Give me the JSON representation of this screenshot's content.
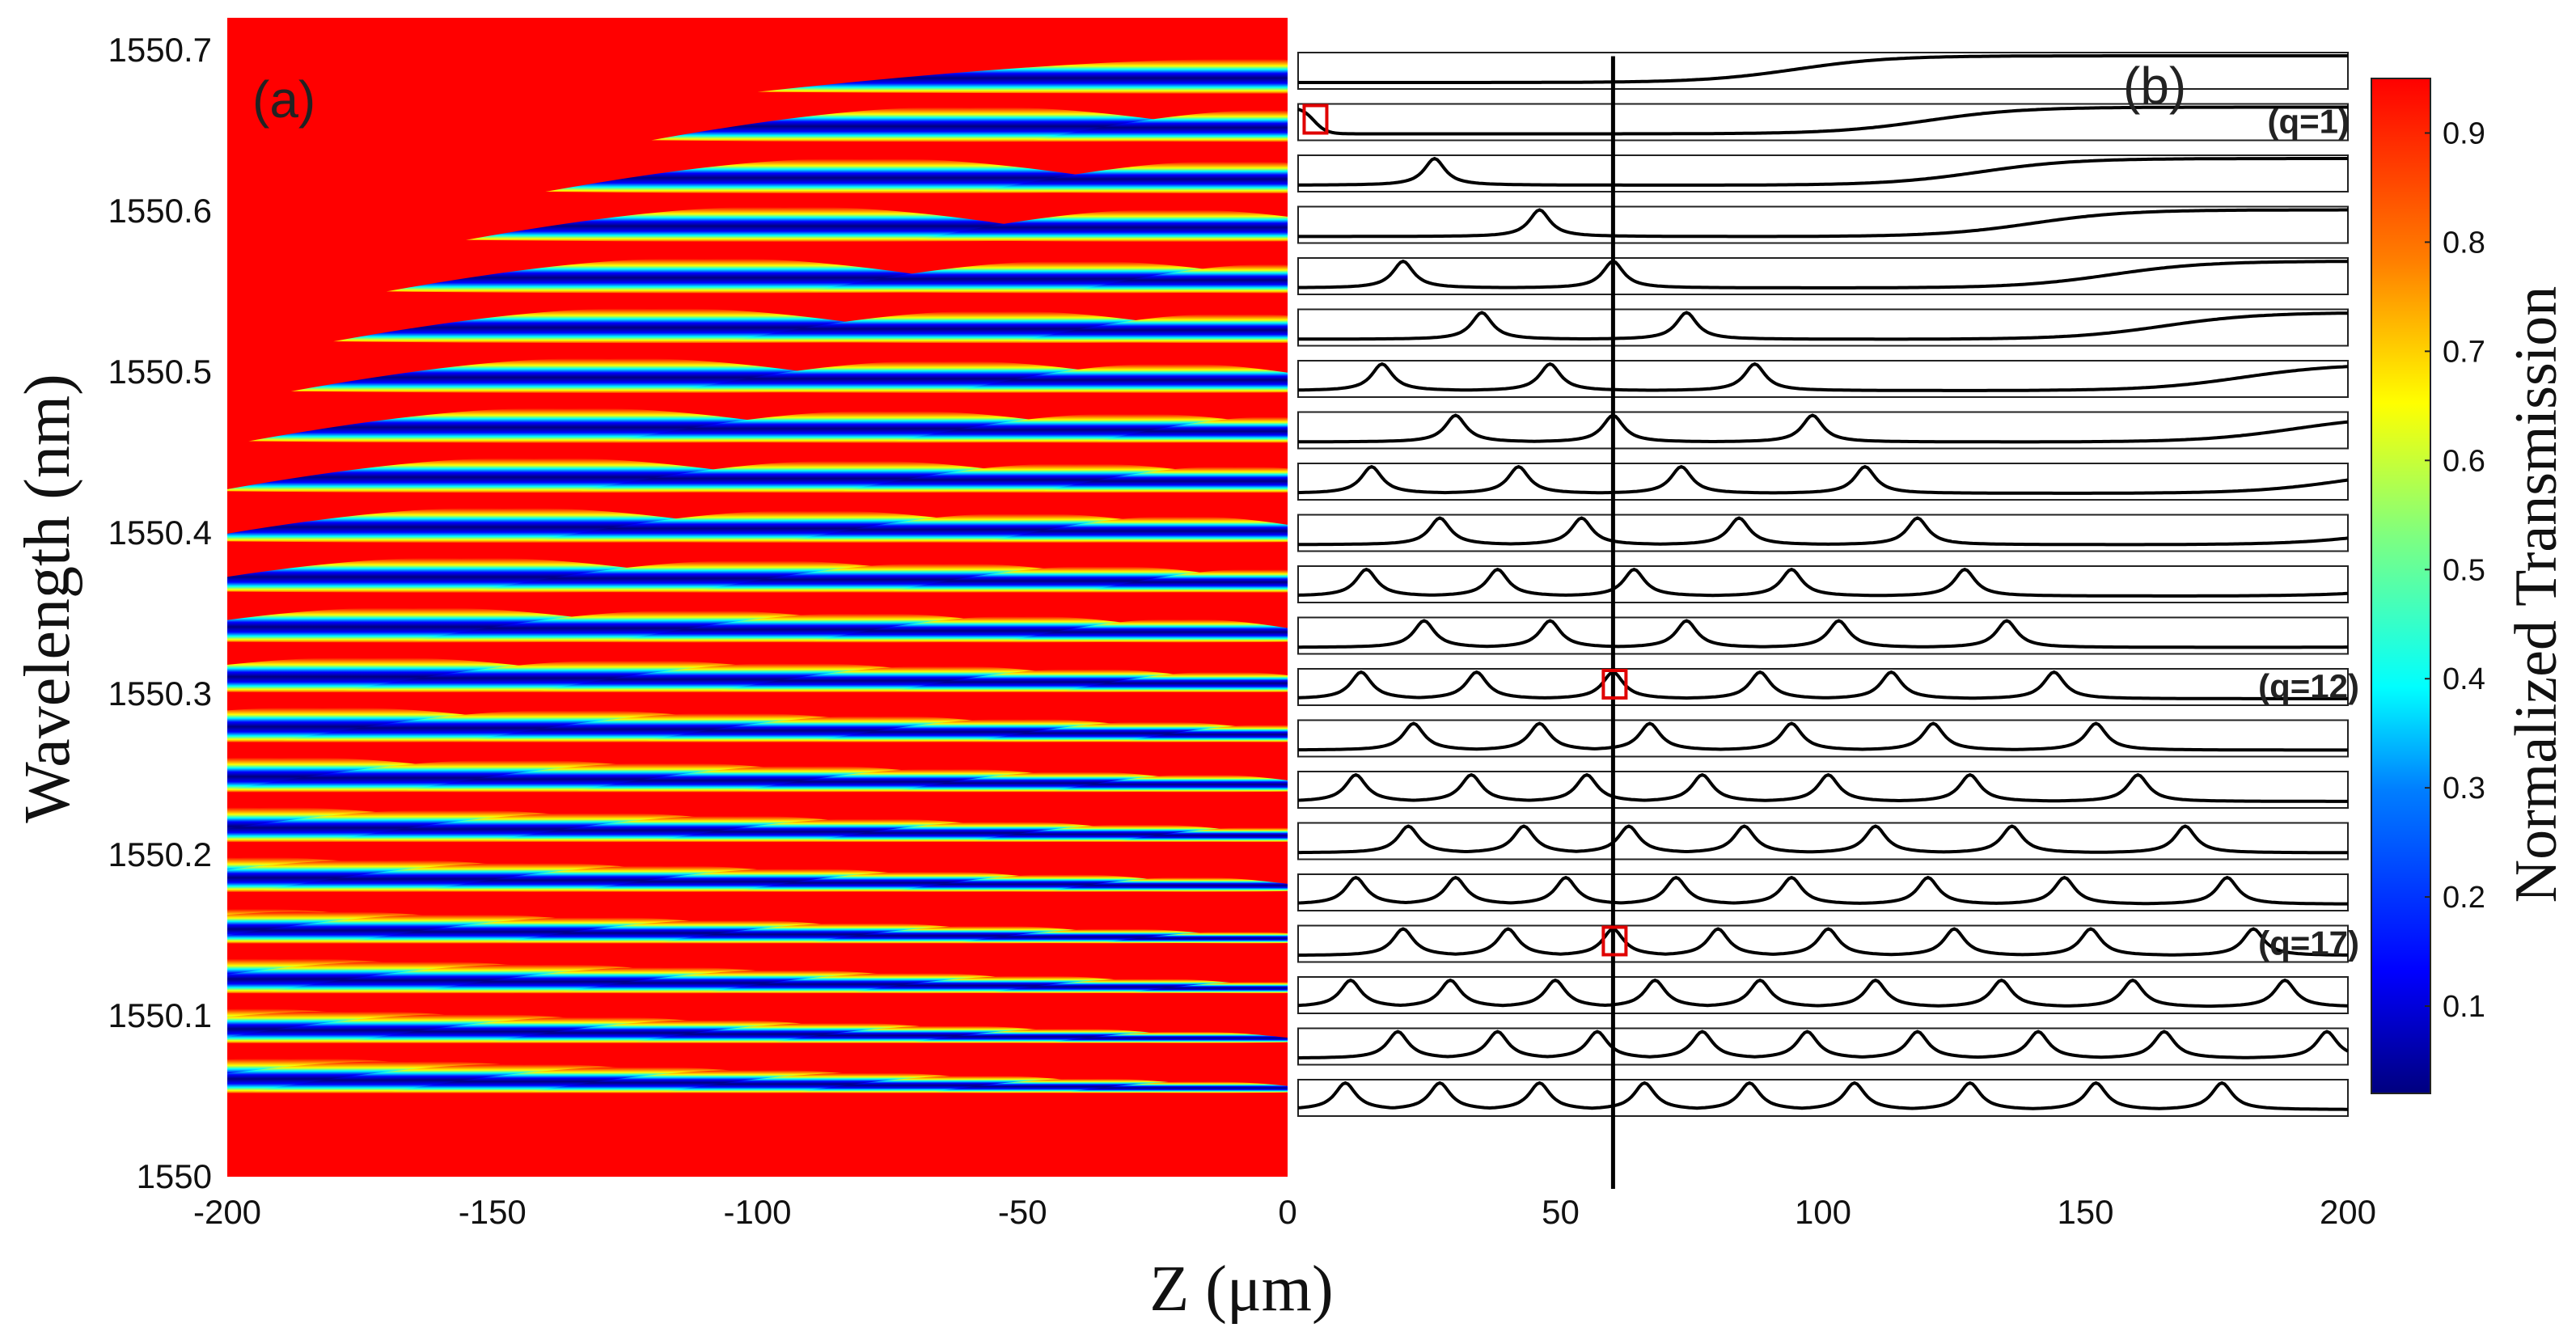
{
  "figure": {
    "panel_a_label": "(a)",
    "panel_b_label": "(b)",
    "x_axis_title": "Z (μm)",
    "y_axis_title": "Wavelength (nm)",
    "colorbar_title": "Normalized Transmission",
    "colormap": [
      "#00007f",
      "#0000ff",
      "#007fff",
      "#00ffff",
      "#7fff7f",
      "#ffff00",
      "#ff7f00",
      "#ff0000"
    ],
    "background_color": "#ff0000",
    "marker_color": "#e00000"
  },
  "chart_data": [
    {
      "type": "heatmap",
      "panel": "(a)",
      "title": "",
      "xlabel": "Z (μm)",
      "ylabel": "Wavelength (nm)",
      "xlim": [
        -200,
        0
      ],
      "ylim": [
        1550,
        1550.72
      ],
      "x_ticks": [
        "-200",
        "-150",
        "-100",
        "-50",
        "0"
      ],
      "y_ticks": [
        "1550",
        "1550.1",
        "1550.2",
        "1550.3",
        "1550.4",
        "1550.5",
        "1550.6",
        "1550.7"
      ],
      "grid": false,
      "colorbar": {
        "label": "Normalized Transmission",
        "range": [
          0.02,
          0.95
        ],
        "ticks": [
          "0.1",
          "0.2",
          "0.3",
          "0.4",
          "0.5",
          "0.6",
          "0.7",
          "0.8",
          "0.9"
        ]
      },
      "band_count": 21,
      "band_wavelengths_nm": [
        1550.683,
        1550.653,
        1550.621,
        1550.591,
        1550.559,
        1550.528,
        1550.497,
        1550.466,
        1550.435,
        1550.404,
        1550.373,
        1550.342,
        1550.311,
        1550.28,
        1550.249,
        1550.218,
        1550.187,
        1550.155,
        1550.124,
        1550.093,
        1550.062
      ],
      "band_lobe_centers_um": [
        [
          0
        ],
        [
          -60,
          0
        ],
        [
          -80,
          -10
        ],
        [
          -95,
          -22
        ],
        [
          -110,
          -40,
          0
        ],
        [
          -120,
          -55,
          -10
        ],
        [
          -128,
          -65,
          -22
        ],
        [
          -136,
          -75,
          -30,
          0
        ],
        [
          -142,
          -82,
          -40,
          -10
        ],
        [
          -148,
          -90,
          -50,
          -20
        ],
        [
          -156,
          -100,
          -65,
          -35,
          -5
        ],
        [
          -165,
          -112,
          -80,
          -50,
          -20
        ],
        [
          -173,
          -124,
          -93,
          -65,
          -38,
          -12
        ],
        [
          -182,
          -135,
          -105,
          -77,
          -50,
          -25,
          -2
        ],
        [
          -190,
          -146,
          -117,
          -90,
          -64,
          -40,
          -16
        ],
        [
          -194,
          -158,
          -130,
          -104,
          -78,
          -53,
          -28,
          -5
        ],
        [
          -198,
          -170,
          -143,
          -117,
          -92,
          -67,
          -42,
          -18
        ],
        [
          -200,
          -182,
          -156,
          -130,
          -105,
          -80,
          -56,
          -32,
          -9
        ],
        [
          -190,
          -165,
          -141,
          -117,
          -94,
          -71,
          -48,
          -26,
          -4
        ],
        [
          -200,
          -177,
          -154,
          -130,
          -108,
          -85,
          -63,
          -41,
          -19
        ],
        [
          -188,
          -166,
          -144,
          -122,
          -100,
          -79,
          -58,
          -37,
          -16
        ]
      ]
    },
    {
      "type": "line",
      "panel": "(b)",
      "title": "",
      "xlabel": "Z (μm)",
      "xlim": [
        0,
        200
      ],
      "x_ticks": [
        "0",
        "50",
        "100",
        "150",
        "200"
      ],
      "grid": false,
      "row_count": 21,
      "vertical_marker_z_um": 60,
      "annotations": [
        {
          "text": "(q=1)",
          "row": 2,
          "marker_z_um": 3
        },
        {
          "text": "(q=12)",
          "row": 13,
          "marker_z_um": 60
        },
        {
          "text": "(q=17)",
          "row": 18,
          "marker_z_um": 60
        }
      ],
      "rows": [
        {
          "row": 1,
          "peaks_um": [],
          "step_um": 95
        },
        {
          "row": 2,
          "peaks_um": [],
          "step_um": 120,
          "start_high": true
        },
        {
          "row": 3,
          "peaks_um": [
            26
          ],
          "step_um": 130
        },
        {
          "row": 4,
          "peaks_um": [
            46
          ],
          "step_um": 140
        },
        {
          "row": 5,
          "peaks_um": [
            20,
            60
          ],
          "step_um": 155
        },
        {
          "row": 6,
          "peaks_um": [
            35,
            74
          ],
          "step_um": 165
        },
        {
          "row": 7,
          "peaks_um": [
            16,
            48,
            87
          ],
          "step_um": 180
        },
        {
          "row": 8,
          "peaks_um": [
            30,
            60,
            98
          ],
          "step_um": 190
        },
        {
          "row": 9,
          "peaks_um": [
            14,
            42,
            73,
            108
          ],
          "step_um": 200
        },
        {
          "row": 10,
          "peaks_um": [
            27,
            54,
            84,
            118
          ],
          "step_um": 210
        },
        {
          "row": 11,
          "peaks_um": [
            13,
            38,
            64,
            94,
            127
          ],
          "step_um": 220
        },
        {
          "row": 12,
          "peaks_um": [
            24,
            48,
            74,
            103,
            135
          ],
          "step_um": 240
        },
        {
          "row": 13,
          "peaks_um": [
            12,
            34,
            60,
            88,
            113,
            144
          ]
        },
        {
          "row": 14,
          "peaks_um": [
            22,
            46,
            67,
            94,
            121,
            152
          ]
        },
        {
          "row": 15,
          "peaks_um": [
            11,
            33,
            55,
            77,
            101,
            128,
            160
          ]
        },
        {
          "row": 16,
          "peaks_um": [
            21,
            43,
            63,
            85,
            110,
            136,
            169
          ]
        },
        {
          "row": 17,
          "peaks_um": [
            11,
            30,
            51,
            72,
            94,
            120,
            146,
            177
          ]
        },
        {
          "row": 18,
          "peaks_um": [
            20,
            40,
            60,
            80,
            101,
            125,
            151,
            182
          ]
        },
        {
          "row": 19,
          "peaks_um": [
            10,
            29,
            49,
            68,
            88,
            110,
            134,
            159,
            188
          ]
        },
        {
          "row": 20,
          "peaks_um": [
            19,
            38,
            57,
            77,
            97,
            118,
            141,
            165,
            196
          ]
        },
        {
          "row": 21,
          "peaks_um": [
            9,
            27,
            46,
            66,
            86,
            106,
            128,
            152,
            176
          ]
        }
      ]
    }
  ]
}
